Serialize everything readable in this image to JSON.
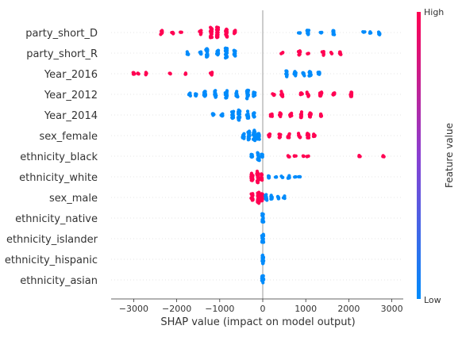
{
  "chart_data": {
    "type": "scatter",
    "subtype": "shap-beeswarm",
    "xlabel": "SHAP value (impact on model output)",
    "xlim": [
      -3300,
      3100
    ],
    "xticks": [
      -3000,
      -2000,
      -1000,
      0,
      1000,
      2000,
      3000
    ],
    "xtick_labels": [
      "−3000",
      "−2000",
      "−1000",
      "0",
      "1000",
      "2000",
      "3000"
    ],
    "features": [
      "party_short_D",
      "party_short_R",
      "Year_2016",
      "Year_2012",
      "Year_2014",
      "sex_female",
      "ethnicity_black",
      "ethnicity_white",
      "sex_male",
      "ethnicity_native",
      "ethnicity_islander",
      "ethnicity_hispanic",
      "ethnicity_asian"
    ],
    "colors": {
      "high": "#ff0052",
      "low": "#008bfb",
      "zero_line": "#999999",
      "row_line": "#cccccc"
    },
    "colorbar": {
      "label": "Feature value",
      "high_label": "High",
      "low_label": "Low"
    },
    "clusters": [
      {
        "feature": "party_short_D",
        "value": "high",
        "points": [
          [
            -2350,
            3
          ],
          [
            -2100,
            2
          ],
          [
            -1900,
            1
          ],
          [
            -1450,
            3
          ],
          [
            -1200,
            8
          ],
          [
            -1050,
            7
          ],
          [
            -850,
            6
          ],
          [
            -650,
            3
          ]
        ]
      },
      {
        "feature": "party_short_D",
        "value": "low",
        "points": [
          [
            850,
            1
          ],
          [
            1050,
            3
          ],
          [
            1350,
            1
          ],
          [
            1650,
            3
          ],
          [
            2350,
            1
          ],
          [
            2500,
            1
          ],
          [
            2700,
            3
          ]
        ]
      },
      {
        "feature": "party_short_R",
        "value": "low",
        "points": [
          [
            -1750,
            2
          ],
          [
            -1450,
            2
          ],
          [
            -1300,
            6
          ],
          [
            -1050,
            4
          ],
          [
            -850,
            7
          ],
          [
            -650,
            4
          ]
        ]
      },
      {
        "feature": "party_short_R",
        "value": "high",
        "points": [
          [
            450,
            1
          ],
          [
            850,
            3
          ],
          [
            1050,
            1
          ],
          [
            1400,
            3
          ],
          [
            1600,
            1
          ],
          [
            1800,
            3
          ]
        ]
      },
      {
        "feature": "Year_2016",
        "value": "high",
        "points": [
          [
            -3000,
            2
          ],
          [
            -2900,
            1
          ],
          [
            -2700,
            2
          ],
          [
            -2150,
            1
          ],
          [
            -1800,
            1
          ],
          [
            -1200,
            2
          ]
        ]
      },
      {
        "feature": "Year_2016",
        "value": "low",
        "points": [
          [
            550,
            4
          ],
          [
            750,
            3
          ],
          [
            950,
            3
          ],
          [
            1100,
            4
          ],
          [
            1300,
            2
          ]
        ]
      },
      {
        "feature": "Year_2012",
        "value": "low",
        "points": [
          [
            -1700,
            2
          ],
          [
            -1550,
            2
          ],
          [
            -1350,
            4
          ],
          [
            -1100,
            5
          ],
          [
            -850,
            5
          ],
          [
            -600,
            4
          ],
          [
            -350,
            6
          ],
          [
            -200,
            3
          ]
        ]
      },
      {
        "feature": "Year_2012",
        "value": "high",
        "points": [
          [
            250,
            2
          ],
          [
            450,
            4
          ],
          [
            900,
            2
          ],
          [
            1050,
            3
          ],
          [
            1350,
            3
          ],
          [
            1650,
            2
          ],
          [
            2050,
            3
          ]
        ]
      },
      {
        "feature": "Year_2014",
        "value": "low",
        "points": [
          [
            -1150,
            2
          ],
          [
            -950,
            2
          ],
          [
            -700,
            5
          ],
          [
            -550,
            7
          ],
          [
            -350,
            5
          ],
          [
            -200,
            3
          ]
        ]
      },
      {
        "feature": "Year_2014",
        "value": "high",
        "points": [
          [
            200,
            2
          ],
          [
            400,
            3
          ],
          [
            650,
            3
          ],
          [
            900,
            4
          ],
          [
            1100,
            3
          ],
          [
            1350,
            2
          ]
        ]
      },
      {
        "feature": "sex_female",
        "value": "low",
        "points": [
          [
            -450,
            4
          ],
          [
            -320,
            6
          ],
          [
            -200,
            7
          ],
          [
            -100,
            5
          ]
        ]
      },
      {
        "feature": "sex_female",
        "value": "high",
        "points": [
          [
            150,
            2
          ],
          [
            400,
            3
          ],
          [
            600,
            3
          ],
          [
            850,
            3
          ],
          [
            1050,
            3
          ],
          [
            1200,
            2
          ]
        ]
      },
      {
        "feature": "ethnicity_black",
        "value": "low",
        "points": [
          [
            -250,
            3
          ],
          [
            -100,
            6
          ],
          [
            -20,
            3
          ]
        ]
      },
      {
        "feature": "ethnicity_black",
        "value": "high",
        "points": [
          [
            600,
            1
          ],
          [
            750,
            1
          ],
          [
            950,
            1
          ],
          [
            1050,
            1
          ],
          [
            2250,
            1
          ],
          [
            2800,
            1
          ]
        ]
      },
      {
        "feature": "ethnicity_white",
        "value": "high",
        "points": [
          [
            -250,
            5
          ],
          [
            -120,
            8
          ],
          [
            -30,
            5
          ]
        ]
      },
      {
        "feature": "ethnicity_white",
        "value": "low",
        "points": [
          [
            150,
            2
          ],
          [
            300,
            1
          ],
          [
            450,
            1
          ],
          [
            600,
            2
          ],
          [
            750,
            1
          ],
          [
            850,
            1
          ]
        ]
      },
      {
        "feature": "sex_male",
        "value": "high",
        "points": [
          [
            -250,
            5
          ],
          [
            -100,
            8
          ],
          [
            -20,
            5
          ]
        ]
      },
      {
        "feature": "sex_male",
        "value": "low",
        "points": [
          [
            80,
            4
          ],
          [
            200,
            3
          ],
          [
            350,
            2
          ],
          [
            500,
            2
          ]
        ]
      },
      {
        "feature": "ethnicity_native",
        "value": "low",
        "points": [
          [
            0,
            6
          ]
        ]
      },
      {
        "feature": "ethnicity_islander",
        "value": "low",
        "points": [
          [
            0,
            6
          ]
        ]
      },
      {
        "feature": "ethnicity_hispanic",
        "value": "low",
        "points": [
          [
            0,
            6
          ]
        ]
      },
      {
        "feature": "ethnicity_asian",
        "value": "low",
        "points": [
          [
            0,
            6
          ]
        ]
      }
    ]
  }
}
